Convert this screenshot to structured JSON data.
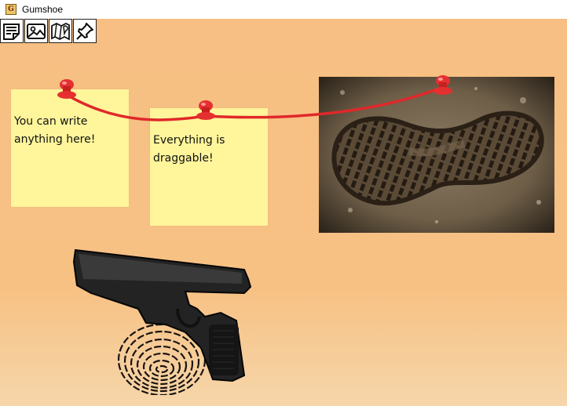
{
  "window": {
    "title": "Gumshoe",
    "app_icon_glyph": "G"
  },
  "toolbar": {
    "buttons": [
      {
        "name": "add-note-button",
        "icon": "note-lines-icon"
      },
      {
        "name": "add-image-button",
        "icon": "image-icon"
      },
      {
        "name": "add-map-button",
        "icon": "map-pin-icon"
      },
      {
        "name": "add-pin-button",
        "icon": "pushpin-icon"
      }
    ]
  },
  "notes": [
    {
      "text": "You can write\nanything here!"
    },
    {
      "text": "Everything is\ndraggable!"
    }
  ],
  "images": [
    {
      "subject": "boot-footprint-photo"
    },
    {
      "subject": "pistol-and-fingerprint-image"
    }
  ],
  "colors": {
    "board_background": "#f7bf83",
    "note_background": "#fff59b",
    "string_red": "#e0282a",
    "pin_red": "#e53030"
  }
}
